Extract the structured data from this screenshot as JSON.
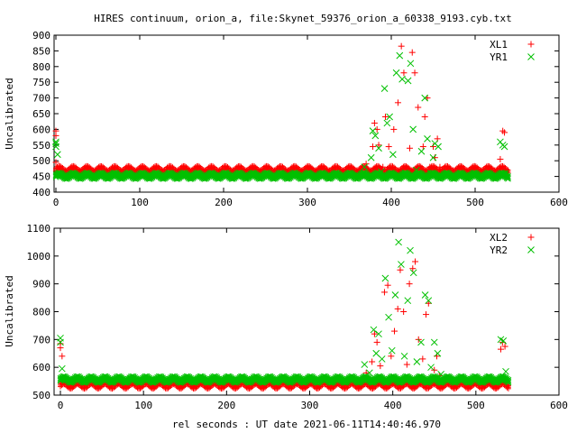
{
  "figure": {
    "title": "HIRES continuum, orion_a, file:Skynet_59376_orion_a_60338_9193.cyb.txt",
    "xlabel": "rel seconds : UT date 2021-06-11T14:40:46.970"
  },
  "chart_data": [
    {
      "type": "scatter",
      "ylabel": "Uncalibrated",
      "xlim": [
        0,
        600
      ],
      "ylim": [
        400,
        900
      ],
      "xticks": [
        0,
        100,
        200,
        300,
        400,
        500,
        600
      ],
      "yticks": [
        400,
        450,
        500,
        550,
        600,
        650,
        700,
        750,
        800,
        850,
        900
      ],
      "legend": "top-right",
      "grid": false,
      "series": [
        {
          "name": "XL1",
          "marker": "plus",
          "color": "#ff0000",
          "x": [
            0,
            0,
            0,
            2,
            370,
            378,
            380,
            383,
            385,
            390,
            393,
            397,
            400,
            403,
            408,
            412,
            415,
            418,
            422,
            425,
            428,
            432,
            438,
            440,
            443,
            446,
            450,
            452,
            455,
            458,
            462,
            530,
            533,
            535,
            536
          ],
          "y": [
            595,
            580,
            495,
            465,
            490,
            545,
            620,
            600,
            550,
            480,
            640,
            545,
            475,
            600,
            685,
            865,
            780,
            475,
            540,
            845,
            780,
            670,
            545,
            640,
            700,
            480,
            545,
            510,
            570,
            480,
            465,
            505,
            595,
            590,
            470
          ],
          "band": {
            "x_start": 0,
            "x_end": 540,
            "center": 472,
            "amp": 7,
            "period": 16.5
          }
        },
        {
          "name": "YR1",
          "marker": "cross",
          "color": "#00c000",
          "x": [
            0,
            0,
            0,
            2,
            368,
            376,
            378,
            381,
            385,
            388,
            392,
            395,
            398,
            402,
            406,
            410,
            413,
            417,
            420,
            423,
            426,
            430,
            436,
            440,
            443,
            447,
            450,
            452,
            456,
            460,
            530,
            533,
            535,
            536
          ],
          "y": [
            560,
            555,
            545,
            520,
            480,
            510,
            595,
            580,
            540,
            465,
            730,
            620,
            640,
            520,
            780,
            835,
            760,
            460,
            755,
            810,
            600,
            470,
            530,
            700,
            570,
            460,
            510,
            555,
            545,
            450,
            560,
            550,
            545,
            460
          ],
          "band": {
            "x_start": 0,
            "x_end": 540,
            "center": 452,
            "amp": 6,
            "period": 16.5
          }
        }
      ]
    },
    {
      "type": "scatter",
      "ylabel": "Uncalibrated",
      "xlim": [
        0,
        600
      ],
      "ylim": [
        500,
        1100
      ],
      "xticks": [
        0,
        100,
        200,
        300,
        400,
        500,
        600
      ],
      "yticks": [
        500,
        600,
        700,
        800,
        900,
        1000,
        1100
      ],
      "legend": "top-right",
      "grid": false,
      "series": [
        {
          "name": "XL2",
          "marker": "plus",
          "color": "#ff0000",
          "x": [
            0,
            0,
            2,
            368,
            375,
            378,
            381,
            385,
            390,
            394,
            398,
            402,
            406,
            409,
            413,
            417,
            420,
            424,
            427,
            431,
            436,
            440,
            443,
            447,
            450,
            453,
            456,
            530,
            532,
            535
          ],
          "y": [
            685,
            670,
            640,
            580,
            620,
            720,
            690,
            605,
            870,
            895,
            640,
            730,
            810,
            950,
            800,
            610,
            900,
            955,
            980,
            700,
            630,
            790,
            830,
            555,
            590,
            640,
            570,
            665,
            690,
            675
          ],
          "band": {
            "x_start": 0,
            "x_end": 540,
            "center": 536,
            "amp": 8,
            "period": 16.5
          }
        },
        {
          "name": "YR2",
          "marker": "cross",
          "color": "#00c000",
          "x": [
            0,
            0,
            2,
            366,
            372,
            377,
            380,
            383,
            387,
            391,
            395,
            399,
            403,
            407,
            410,
            414,
            418,
            421,
            425,
            429,
            434,
            439,
            443,
            446,
            450,
            454,
            458,
            530,
            533,
            536
          ],
          "y": [
            705,
            690,
            595,
            610,
            580,
            735,
            650,
            720,
            630,
            920,
            780,
            660,
            860,
            1050,
            970,
            640,
            840,
            1020,
            940,
            620,
            690,
            860,
            840,
            600,
            690,
            650,
            575,
            700,
            695,
            585
          ],
          "band": {
            "x_start": 0,
            "x_end": 540,
            "center": 556,
            "amp": 7,
            "period": 16.5
          }
        }
      ]
    }
  ]
}
